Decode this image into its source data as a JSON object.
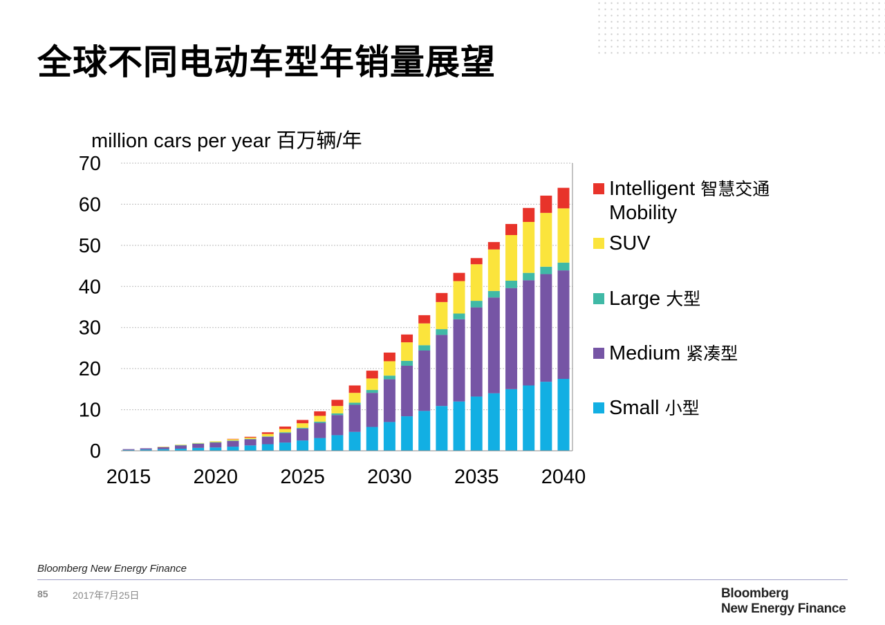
{
  "title": "全球不同电动车型年销量展望",
  "colors": {
    "small": "#12afe3",
    "medium": "#7655a5",
    "large": "#40b9a6",
    "suv": "#fbe43c",
    "intelligent": "#e8332a",
    "grid": "#bbbbbb",
    "axis": "#888888"
  },
  "chart_data": {
    "type": "bar",
    "stacked": true,
    "ylabel": "million cars per year 百万辆/年",
    "ylim": [
      0,
      70
    ],
    "yticks": [
      0,
      10,
      20,
      30,
      40,
      50,
      60,
      70
    ],
    "xticks": [
      2015,
      2020,
      2025,
      2030,
      2035,
      2040
    ],
    "grid": true,
    "legend_position": "right",
    "categories": [
      2015,
      2016,
      2017,
      2018,
      2019,
      2020,
      2021,
      2022,
      2023,
      2024,
      2025,
      2026,
      2027,
      2028,
      2029,
      2030,
      2031,
      2032,
      2033,
      2034,
      2035,
      2036,
      2037,
      2038,
      2039,
      2040
    ],
    "series": [
      {
        "key": "small",
        "name": "Small 小型",
        "values": [
          0.2,
          0.3,
          0.4,
          0.5,
          0.7,
          0.8,
          1.0,
          1.3,
          1.6,
          2.0,
          2.5,
          3.1,
          3.8,
          4.6,
          5.8,
          7.0,
          8.4,
          9.7,
          10.9,
          12.0,
          13.2,
          14.0,
          15.0,
          15.9,
          16.8,
          17.5
        ]
      },
      {
        "key": "medium",
        "name": "Medium 紧凑型",
        "values": [
          0.2,
          0.3,
          0.5,
          0.8,
          1.0,
          1.2,
          1.4,
          1.5,
          1.8,
          2.3,
          2.9,
          3.7,
          4.9,
          6.6,
          8.3,
          10.4,
          12.3,
          14.7,
          17.3,
          20.0,
          21.7,
          23.3,
          24.6,
          25.6,
          26.2,
          26.4
        ]
      },
      {
        "key": "large",
        "name": "Large 大型",
        "values": [
          0.0,
          0.0,
          0.0,
          0.1,
          0.1,
          0.1,
          0.1,
          0.1,
          0.1,
          0.2,
          0.2,
          0.3,
          0.4,
          0.5,
          0.7,
          0.9,
          1.2,
          1.3,
          1.4,
          1.4,
          1.6,
          1.6,
          1.8,
          1.8,
          1.8,
          1.9
        ]
      },
      {
        "key": "suv",
        "name": "SUV",
        "values": [
          0.0,
          0.0,
          0.1,
          0.1,
          0.1,
          0.2,
          0.3,
          0.3,
          0.6,
          0.8,
          1.1,
          1.4,
          1.8,
          2.4,
          2.8,
          3.5,
          4.5,
          5.3,
          6.6,
          7.9,
          8.9,
          10.1,
          11.1,
          12.4,
          13.1,
          13.2
        ]
      },
      {
        "key": "intelligent",
        "name": "Intelligent 智慧交通 Mobility",
        "values": [
          0.0,
          0.0,
          0.0,
          0.0,
          0.0,
          0.0,
          0.1,
          0.2,
          0.4,
          0.6,
          0.8,
          1.1,
          1.5,
          1.8,
          1.9,
          2.1,
          1.9,
          2.0,
          2.2,
          2.0,
          1.5,
          1.8,
          2.7,
          3.4,
          4.2,
          5.0
        ]
      }
    ]
  },
  "legend": [
    {
      "key": "intelligent",
      "label_main": "Intelligent",
      "label_cn": "智慧交通",
      "label_line2": "Mobility"
    },
    {
      "key": "suv",
      "label_main": "SUV",
      "label_cn": "",
      "label_line2": ""
    },
    {
      "key": "large",
      "label_main": "Large",
      "label_cn": "大型",
      "label_line2": ""
    },
    {
      "key": "medium",
      "label_main": "Medium",
      "label_cn": "紧凑型",
      "label_line2": ""
    },
    {
      "key": "small",
      "label_main": "Small",
      "label_cn": "小型",
      "label_line2": ""
    }
  ],
  "footer": {
    "source": "Bloomberg New Energy Finance",
    "page_number": "85",
    "date": "2017年7月25日",
    "logo_line1": "Bloomberg",
    "logo_line2": "New Energy Finance"
  }
}
